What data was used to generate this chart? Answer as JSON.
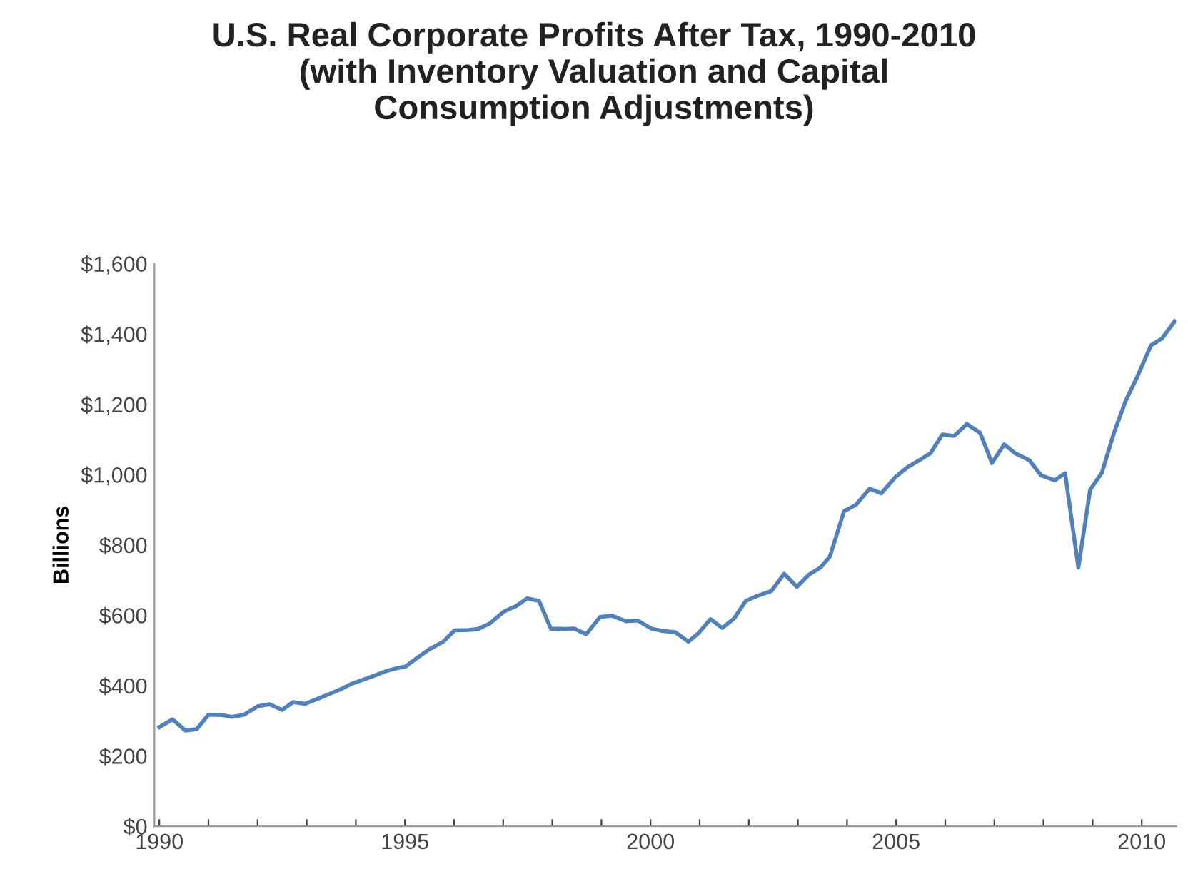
{
  "chart_data": {
    "type": "line",
    "title": "U.S. Real Corporate Profits After Tax, 1990-2010\n(with Inventory Valuation and Capital\nConsumption Adjustments)",
    "ylabel": "Billions",
    "series": [
      {
        "color": "#4f81bd",
        "x": [
          1990.0,
          1990.27,
          1990.53,
          1990.76,
          1991.0,
          1991.24,
          1991.48,
          1991.72,
          1992.0,
          1992.24,
          1992.5,
          1992.72,
          1992.96,
          1993.2,
          1993.44,
          1993.68,
          1993.91,
          1994.15,
          1994.39,
          1994.63,
          1994.82,
          1995.01,
          1995.25,
          1995.49,
          1995.78,
          1996.01,
          1996.3,
          1996.49,
          1996.73,
          1997.02,
          1997.26,
          1997.49,
          1997.73,
          1997.97,
          1998.26,
          1998.45,
          1998.69,
          1998.97,
          1999.21,
          1999.5,
          1999.74,
          2000.02,
          2000.26,
          2000.5,
          2000.77,
          2000.98,
          2001.22,
          2001.46,
          2001.7,
          2001.94,
          2002.17,
          2002.46,
          2002.72,
          2002.98,
          2003.22,
          2003.46,
          2003.65,
          2003.94,
          2004.18,
          2004.46,
          2004.7,
          2004.99,
          2005.23,
          2005.47,
          2005.7,
          2005.94,
          2006.18,
          2006.44,
          2006.71,
          2006.95,
          2007.2,
          2007.42,
          2007.71,
          2007.95,
          2008.23,
          2008.44,
          2008.71,
          2008.95,
          2009.19,
          2009.43,
          2009.67,
          2009.9,
          2010.19,
          2010.41,
          2010.67
        ],
        "values": [
          282,
          304,
          272,
          276,
          317,
          317,
          311,
          317,
          341,
          347,
          331,
          353,
          348,
          361,
          375,
          389,
          405,
          417,
          429,
          442,
          449,
          454,
          479,
          503,
          525,
          557,
          558,
          561,
          577,
          611,
          626,
          648,
          641,
          562,
          561,
          562,
          546,
          595,
          599,
          583,
          585,
          562,
          555,
          552,
          525,
          550,
          589,
          564,
          591,
          641,
          655,
          669,
          718,
          681,
          715,
          736,
          767,
          896,
          914,
          960,
          947,
          994,
          1021,
          1041,
          1061,
          1114,
          1110,
          1144,
          1119,
          1033,
          1086,
          1061,
          1041,
          998,
          984,
          1004,
          736,
          957,
          1006,
          1117,
          1209,
          1276,
          1368,
          1387,
          1436
        ]
      }
    ],
    "xlim": [
      1989.9,
      2010.7
    ],
    "xticks": [
      1990,
      {
        "value": 1991,
        "label": null
      },
      {
        "value": 1992,
        "label": null
      },
      {
        "value": 1993,
        "label": null
      },
      {
        "value": 1994,
        "label": null
      },
      1995,
      {
        "value": 1996,
        "label": null
      },
      {
        "value": 1997,
        "label": null
      },
      {
        "value": 1998,
        "label": null
      },
      {
        "value": 1999,
        "label": null
      },
      2000,
      {
        "value": 2001,
        "label": null
      },
      {
        "value": 2002,
        "label": null
      },
      {
        "value": 2003,
        "label": null
      },
      {
        "value": 2004,
        "label": null
      },
      2005,
      {
        "value": 2006,
        "label": null
      },
      {
        "value": 2007,
        "label": null
      },
      {
        "value": 2008,
        "label": null
      },
      {
        "value": 2009,
        "label": null
      },
      2010
    ],
    "ylim": [
      0,
      1600
    ],
    "yticks": [
      {
        "value": 0,
        "label": "$0"
      },
      {
        "value": 200,
        "label": "$200"
      },
      {
        "value": 400,
        "label": "$400"
      },
      {
        "value": 600,
        "label": "$600"
      },
      {
        "value": 800,
        "label": "$800"
      },
      {
        "value": 1000,
        "label": "$1,000"
      },
      {
        "value": 1200,
        "label": "$1,200"
      },
      {
        "value": 1400,
        "label": "$1,400"
      },
      {
        "value": 1600,
        "label": "$1,600"
      }
    ],
    "grid": false,
    "marker": "none",
    "line_style": "solid"
  }
}
